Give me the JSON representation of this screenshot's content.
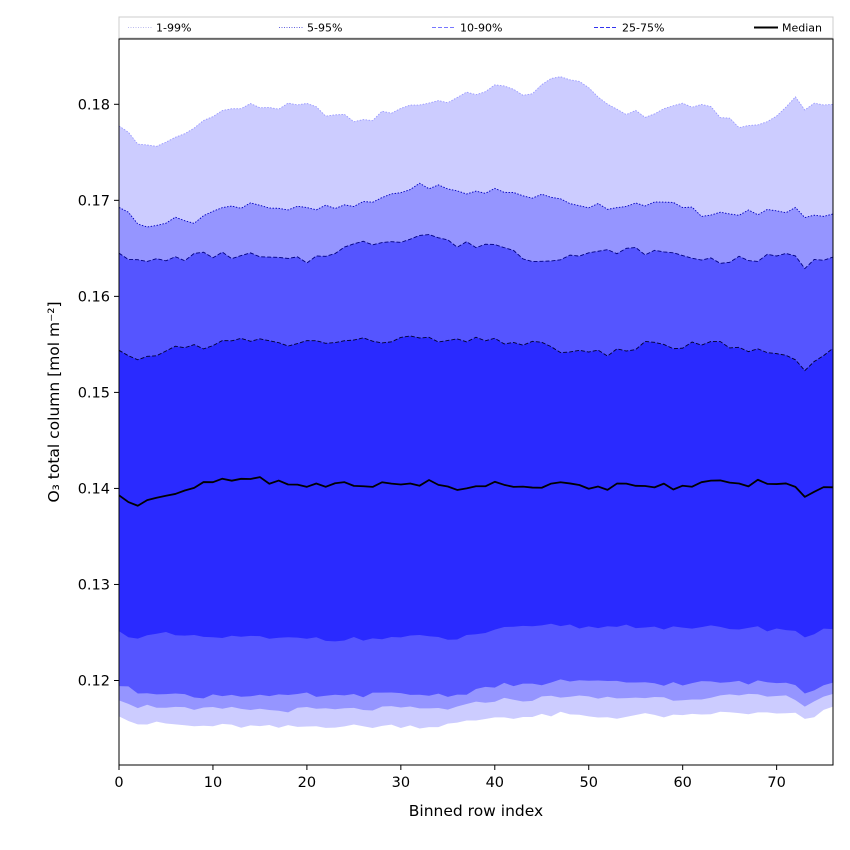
{
  "chart_data": {
    "type": "area",
    "title": "",
    "xlabel": "Binned row index",
    "ylabel": "O₃ total column [mol m⁻²]",
    "xlim": [
      0,
      76
    ],
    "ylim": [
      0.1112,
      0.1868
    ],
    "xticks": [
      0,
      10,
      20,
      30,
      40,
      50,
      60,
      70
    ],
    "yticks": [
      0.12,
      0.13,
      0.14,
      0.15,
      0.16,
      0.17,
      0.18
    ],
    "grid": false,
    "legend_position": "top, above plot",
    "x_keypoints": [
      0,
      2,
      5,
      8,
      10,
      14,
      17,
      20,
      23,
      26,
      30,
      33,
      36,
      40,
      44,
      47,
      50,
      53,
      56,
      60,
      63,
      67,
      70,
      72,
      73,
      76
    ],
    "bands": [
      {
        "label": "1-99%",
        "fill_color": "#ccccff",
        "edge_color": "#9999ff",
        "edge_style": "dotted",
        "upper": [
          0.178,
          0.1758,
          0.1758,
          0.1775,
          0.1791,
          0.1798,
          0.1797,
          0.1798,
          0.1788,
          0.1782,
          0.1797,
          0.1802,
          0.1806,
          0.1818,
          0.1811,
          0.1832,
          0.1814,
          0.1795,
          0.1788,
          0.1801,
          0.1794,
          0.1774,
          0.1787,
          0.1808,
          0.1798,
          0.1802
        ],
        "lower": [
          0.1165,
          0.1155,
          0.1155,
          0.1152,
          0.1153,
          0.1152,
          0.1151,
          0.1152,
          0.1153,
          0.1152,
          0.1153,
          0.1152,
          0.1155,
          0.1162,
          0.1162,
          0.1165,
          0.1162,
          0.1162,
          0.1164,
          0.1162,
          0.1166,
          0.1166,
          0.1165,
          0.1165,
          0.1158,
          0.1172
        ]
      },
      {
        "label": "5-95%",
        "fill_color": "#9595ff",
        "edge_color": "#0000c0",
        "edge_style": "dotted",
        "upper": [
          0.1695,
          0.1675,
          0.1678,
          0.168,
          0.1688,
          0.1698,
          0.1692,
          0.169,
          0.1692,
          0.1695,
          0.171,
          0.1716,
          0.1708,
          0.171,
          0.1705,
          0.17,
          0.1695,
          0.1694,
          0.1698,
          0.1693,
          0.1684,
          0.1687,
          0.1688,
          0.1692,
          0.168,
          0.1688
        ]
      },
      {
        "label": "10-90%",
        "fill_color": "#5555ff",
        "edge_color": "#000080",
        "edge_style": "dashed",
        "upper": [
          0.1648,
          0.1635,
          0.1638,
          0.1642,
          0.1643,
          0.1642,
          0.1638,
          0.1637,
          0.1648,
          0.1655,
          0.166,
          0.1665,
          0.1653,
          0.1655,
          0.1638,
          0.1642,
          0.1643,
          0.1648,
          0.1647,
          0.1643,
          0.1638,
          0.1638,
          0.1641,
          0.1642,
          0.1632,
          0.1643
        ],
        "lower": [
          0.1195,
          0.1188,
          0.1188,
          0.1182,
          0.1185,
          0.1185,
          0.1183,
          0.1185,
          0.1183,
          0.1185,
          0.1186,
          0.1185,
          0.1185,
          0.1195,
          0.1195,
          0.12,
          0.1198,
          0.1198,
          0.1198,
          0.1196,
          0.1198,
          0.1198,
          0.1198,
          0.1196,
          0.1188,
          0.12
        ]
      },
      {
        "label": "25-75%",
        "fill_color": "#2a2aff",
        "edge_color": "#000030",
        "edge_style": "dashed",
        "upper": [
          0.1542,
          0.153,
          0.1545,
          0.1548,
          0.155,
          0.1555,
          0.155,
          0.1552,
          0.1553,
          0.1553,
          0.1556,
          0.1555,
          0.1552,
          0.1555,
          0.155,
          0.1545,
          0.154,
          0.1542,
          0.155,
          0.1548,
          0.1552,
          0.1545,
          0.1537,
          0.1533,
          0.1525,
          0.1542
        ],
        "lower": [
          0.125,
          0.1245,
          0.1248,
          0.1245,
          0.1245,
          0.1245,
          0.1243,
          0.1245,
          0.1243,
          0.1243,
          0.1245,
          0.1245,
          0.1243,
          0.1253,
          0.1255,
          0.1258,
          0.1255,
          0.1257,
          0.1257,
          0.1253,
          0.1255,
          0.1255,
          0.1253,
          0.1253,
          0.1245,
          0.1255
        ]
      }
    ],
    "median": {
      "label": "Median",
      "color": "#000000",
      "values": [
        0.139,
        0.1385,
        0.1395,
        0.14,
        0.1407,
        0.141,
        0.1407,
        0.1402,
        0.1405,
        0.1403,
        0.1405,
        0.1406,
        0.14,
        0.1405,
        0.1403,
        0.1405,
        0.14,
        0.1403,
        0.1405,
        0.14,
        0.1405,
        0.1405,
        0.1407,
        0.1405,
        0.1393,
        0.1402
      ]
    }
  }
}
